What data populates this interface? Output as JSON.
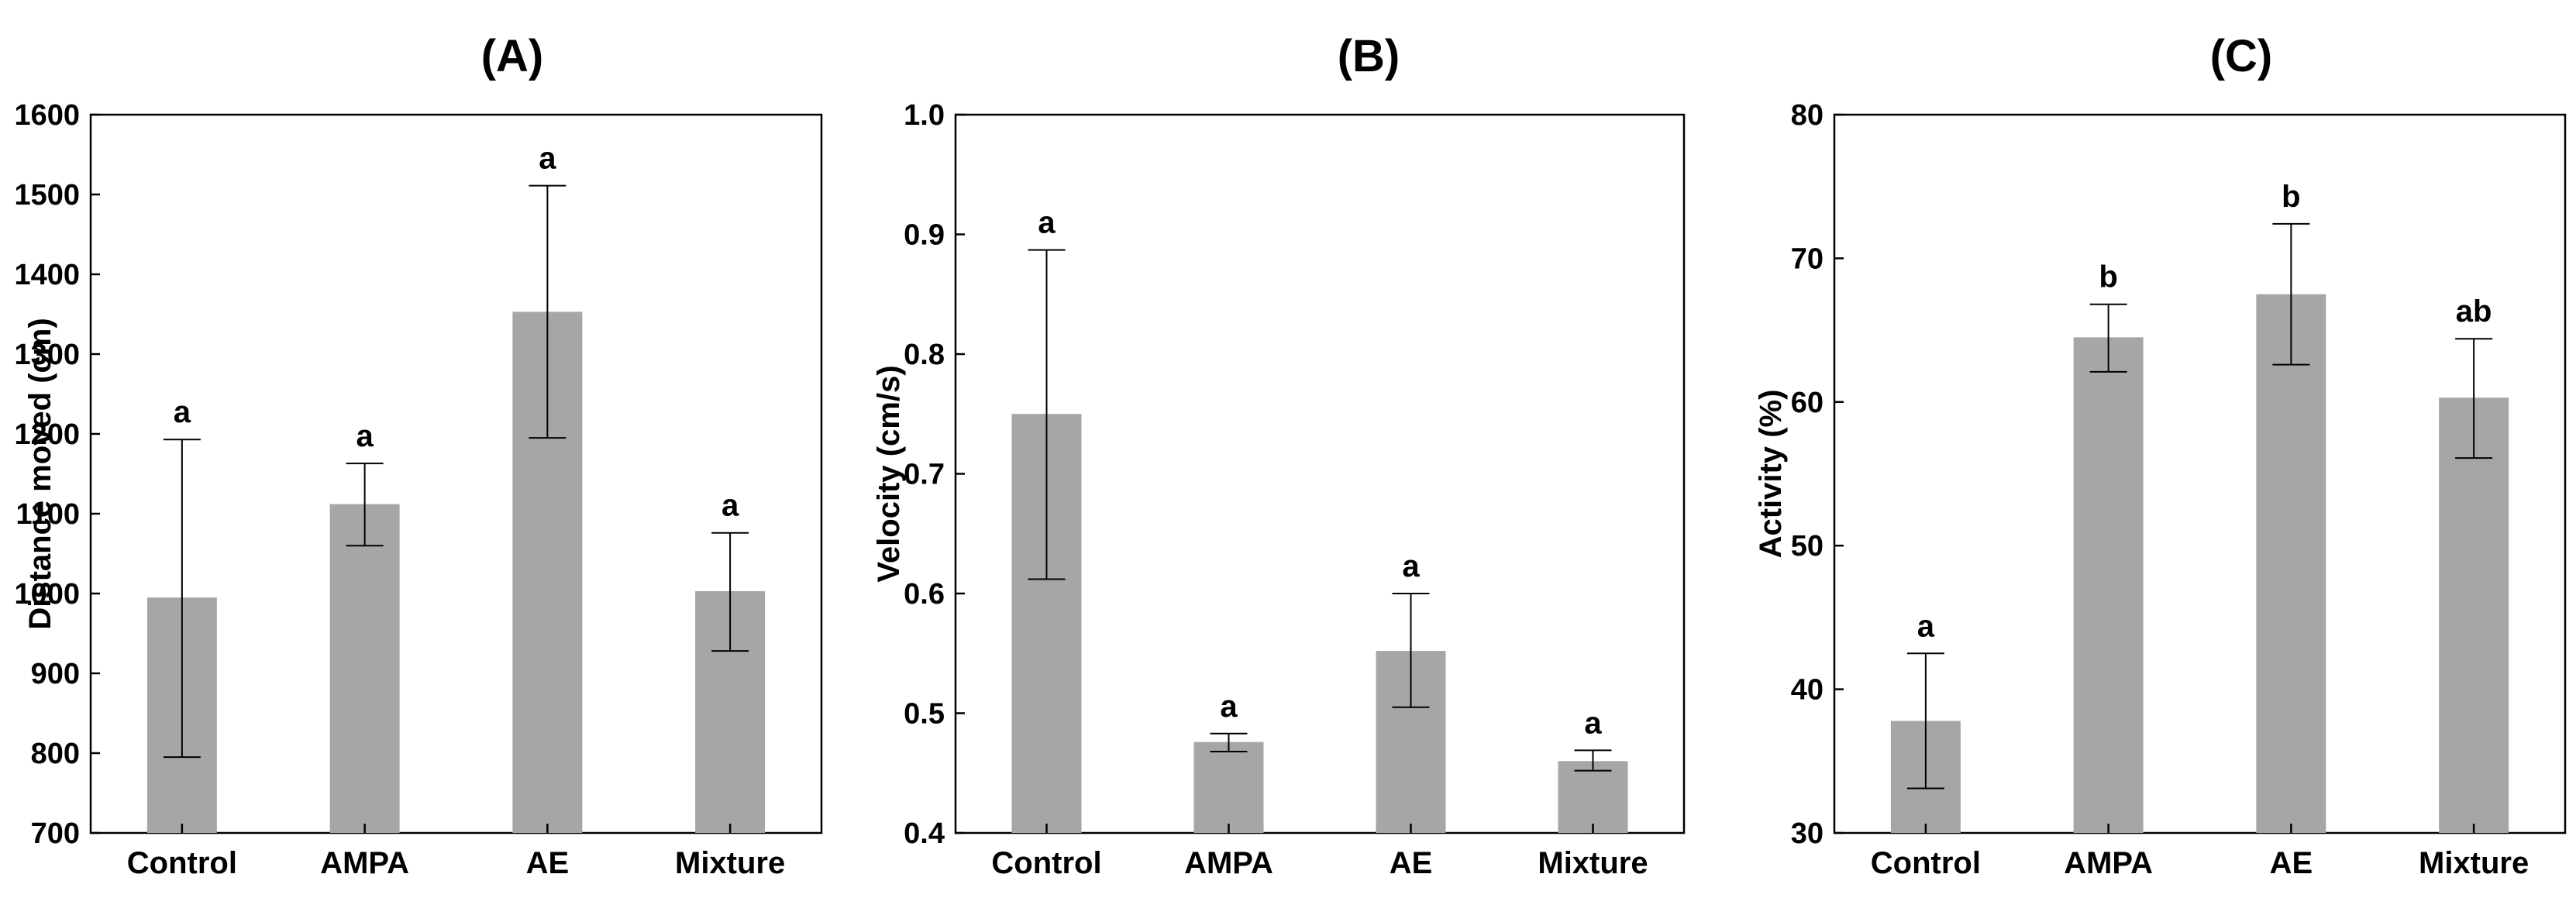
{
  "colors": {
    "bar": "#a6a6a6",
    "axis": "#000000",
    "background": "#ffffff"
  },
  "chart_data": [
    {
      "type": "bar",
      "title": "(A)",
      "xlabel": "",
      "ylabel": "Distance moved (cm)",
      "categories": [
        "Control",
        "AMPA",
        "AE",
        "Mixture"
      ],
      "values": [
        995,
        1112,
        1353,
        1003
      ],
      "error_low": [
        795,
        1060,
        1195,
        928
      ],
      "error_high": [
        1193,
        1163,
        1511,
        1076
      ],
      "significance": [
        "a",
        "a",
        "a",
        "a"
      ],
      "ylim": [
        700,
        1600
      ],
      "yticks": [
        700,
        800,
        900,
        1000,
        1100,
        1200,
        1300,
        1400,
        1500,
        1600
      ],
      "ytick_labels": [
        "700",
        "800",
        "900",
        "1000",
        "1100",
        "1200",
        "1300",
        "1400",
        "1500",
        "1600"
      ]
    },
    {
      "type": "bar",
      "title": "(B)",
      "xlabel": "",
      "ylabel": "Velocity (cm/s)",
      "categories": [
        "Control",
        "AMPA",
        "AE",
        "Mixture"
      ],
      "values": [
        0.75,
        0.476,
        0.552,
        0.46
      ],
      "error_low": [
        0.612,
        0.468,
        0.505,
        0.452
      ],
      "error_high": [
        0.887,
        0.483,
        0.6,
        0.469
      ],
      "significance": [
        "a",
        "a",
        "a",
        "a"
      ],
      "ylim": [
        0.4,
        1.0
      ],
      "yticks": [
        0.4,
        0.5,
        0.6,
        0.7,
        0.8,
        0.9,
        1.0
      ],
      "ytick_labels": [
        "0.4",
        "0.5",
        "0.6",
        "0.7",
        "0.8",
        "0.9",
        "1.0"
      ]
    },
    {
      "type": "bar",
      "title": "(C)",
      "xlabel": "",
      "ylabel": "Activity (%)",
      "categories": [
        "Control",
        "AMPA",
        "AE",
        "Mixture"
      ],
      "values": [
        37.8,
        64.5,
        67.5,
        60.3
      ],
      "error_low": [
        33.1,
        62.1,
        62.6,
        56.1
      ],
      "error_high": [
        42.5,
        66.8,
        72.4,
        64.4
      ],
      "significance": [
        "a",
        "b",
        "b",
        "ab"
      ],
      "ylim": [
        30,
        80
      ],
      "yticks": [
        30,
        40,
        50,
        60,
        70,
        80
      ],
      "ytick_labels": [
        "30",
        "40",
        "50",
        "60",
        "70",
        "80"
      ]
    }
  ]
}
